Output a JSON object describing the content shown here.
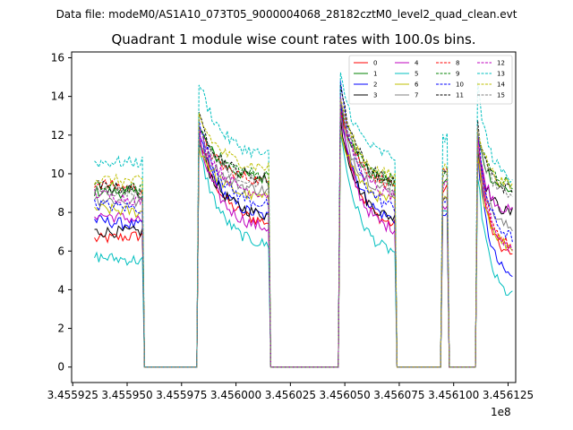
{
  "chart_data": {
    "type": "line",
    "suptitle": "Data file: modeM0/AS1A10_073T05_9000004068_28182cztM0_level2_quad_clean.evt",
    "title": "Quadrant 1 module wise count rates with 100.0s bins.",
    "xlabel": "",
    "ylabel": "",
    "x_offset_label": "1e8",
    "xlim": [
      3.4559245,
      3.4561285
    ],
    "ylim": [
      -0.8,
      16.3
    ],
    "xticks": [
      3.455925,
      3.45595,
      3.455975,
      3.456,
      3.456025,
      3.45605,
      3.456075,
      3.4561,
      3.456125
    ],
    "xtick_labels": [
      "3.455925",
      "3.455950",
      "3.455975",
      "3.456000",
      "3.456025",
      "3.456050",
      "3.456075",
      "3.456100",
      "3.456125"
    ],
    "yticks": [
      0,
      2,
      4,
      6,
      8,
      10,
      12,
      14,
      16
    ],
    "ytick_labels": [
      "0",
      "2",
      "4",
      "6",
      "8",
      "10",
      "12",
      "14",
      "16"
    ],
    "segments": [
      {
        "start": 3.455935,
        "end": 3.455957,
        "shape": "flat"
      },
      {
        "start": 3.455983,
        "end": 3.456015,
        "shape": "decay"
      },
      {
        "start": 3.456048,
        "end": 3.456073,
        "shape": "decay"
      },
      {
        "start": 3.456095,
        "end": 3.456097,
        "shape": "spike"
      },
      {
        "start": 3.456111,
        "end": 3.456127,
        "shape": "decay"
      }
    ],
    "gaps_value": 0,
    "legend_position": "top-right",
    "series": [
      {
        "name": "0",
        "color": "#ff0000",
        "dashed": false,
        "levels": [
          6.6,
          12.0,
          13.4,
          9.2,
          11.5
        ],
        "end": [
          6.8,
          7.3,
          7.1,
          8.0,
          5.5
        ]
      },
      {
        "name": "1",
        "color": "#008000",
        "dashed": false,
        "levels": [
          9.1,
          12.4,
          13.7,
          9.6,
          11.9
        ],
        "end": [
          9.0,
          9.6,
          9.3,
          9.5,
          9.0
        ]
      },
      {
        "name": "2",
        "color": "#0000ff",
        "dashed": false,
        "levels": [
          7.6,
          12.1,
          13.5,
          7.8,
          11.2
        ],
        "end": [
          7.3,
          7.6,
          7.4,
          7.0,
          4.4
        ]
      },
      {
        "name": "3",
        "color": "#000000",
        "dashed": false,
        "levels": [
          7.0,
          11.6,
          12.8,
          8.9,
          11.3
        ],
        "end": [
          7.0,
          7.7,
          7.5,
          8.5,
          7.8
        ]
      },
      {
        "name": "4",
        "color": "#bf00bf",
        "dashed": false,
        "levels": [
          7.9,
          11.7,
          13.1,
          8.4,
          11.4
        ],
        "end": [
          7.6,
          7.0,
          6.9,
          8.2,
          7.9
        ]
      },
      {
        "name": "5",
        "color": "#00bfbf",
        "dashed": false,
        "levels": [
          5.7,
          11.3,
          12.2,
          7.8,
          10.1
        ],
        "end": [
          5.5,
          6.1,
          5.7,
          6.6,
          3.4
        ]
      },
      {
        "name": "6",
        "color": "#bfbf00",
        "dashed": false,
        "levels": [
          8.2,
          11.4,
          12.4,
          8.6,
          10.8
        ],
        "end": [
          8.0,
          8.6,
          8.4,
          8.3,
          6.0
        ]
      },
      {
        "name": "7",
        "color": "#808080",
        "dashed": false,
        "levels": [
          8.7,
          11.8,
          12.9,
          8.9,
          11.2
        ],
        "end": [
          8.5,
          9.0,
          8.9,
          9.0,
          7.0
        ]
      },
      {
        "name": "8",
        "color": "#ff0000",
        "dashed": true,
        "levels": [
          9.5,
          12.2,
          13.6,
          10.0,
          12.0
        ],
        "end": [
          9.2,
          9.5,
          9.3,
          9.3,
          6.0
        ]
      },
      {
        "name": "9",
        "color": "#008000",
        "dashed": true,
        "levels": [
          9.3,
          12.5,
          13.8,
          9.9,
          12.1
        ],
        "end": [
          9.2,
          9.8,
          9.5,
          9.8,
          9.4
        ]
      },
      {
        "name": "10",
        "color": "#0000ff",
        "dashed": true,
        "levels": [
          8.4,
          12.6,
          14.5,
          8.7,
          12.0
        ],
        "end": [
          8.2,
          8.2,
          8.0,
          8.0,
          6.5
        ]
      },
      {
        "name": "11",
        "color": "#000000",
        "dashed": true,
        "levels": [
          9.4,
          12.9,
          14.6,
          10.0,
          12.5
        ],
        "end": [
          9.1,
          9.6,
          9.4,
          9.6,
          9.0
        ]
      },
      {
        "name": "12",
        "color": "#bf00bf",
        "dashed": true,
        "levels": [
          9.0,
          12.3,
          14.0,
          9.3,
          11.8
        ],
        "end": [
          8.6,
          8.8,
          8.6,
          8.6,
          5.9
        ]
      },
      {
        "name": "13",
        "color": "#00bfbf",
        "dashed": true,
        "levels": [
          10.6,
          14.8,
          15.1,
          11.8,
          14.7
        ],
        "end": [
          10.6,
          10.8,
          10.7,
          10.6,
          9.6
        ]
      },
      {
        "name": "14",
        "color": "#bfbf00",
        "dashed": true,
        "levels": [
          9.7,
          13.0,
          14.0,
          10.3,
          12.6
        ],
        "end": [
          9.6,
          10.2,
          9.7,
          9.6,
          9.2
        ]
      },
      {
        "name": "15",
        "color": "#808080",
        "dashed": true,
        "levels": [
          9.2,
          12.4,
          13.6,
          9.9,
          12.2
        ],
        "end": [
          9.0,
          9.4,
          9.1,
          9.3,
          8.8
        ]
      }
    ]
  }
}
